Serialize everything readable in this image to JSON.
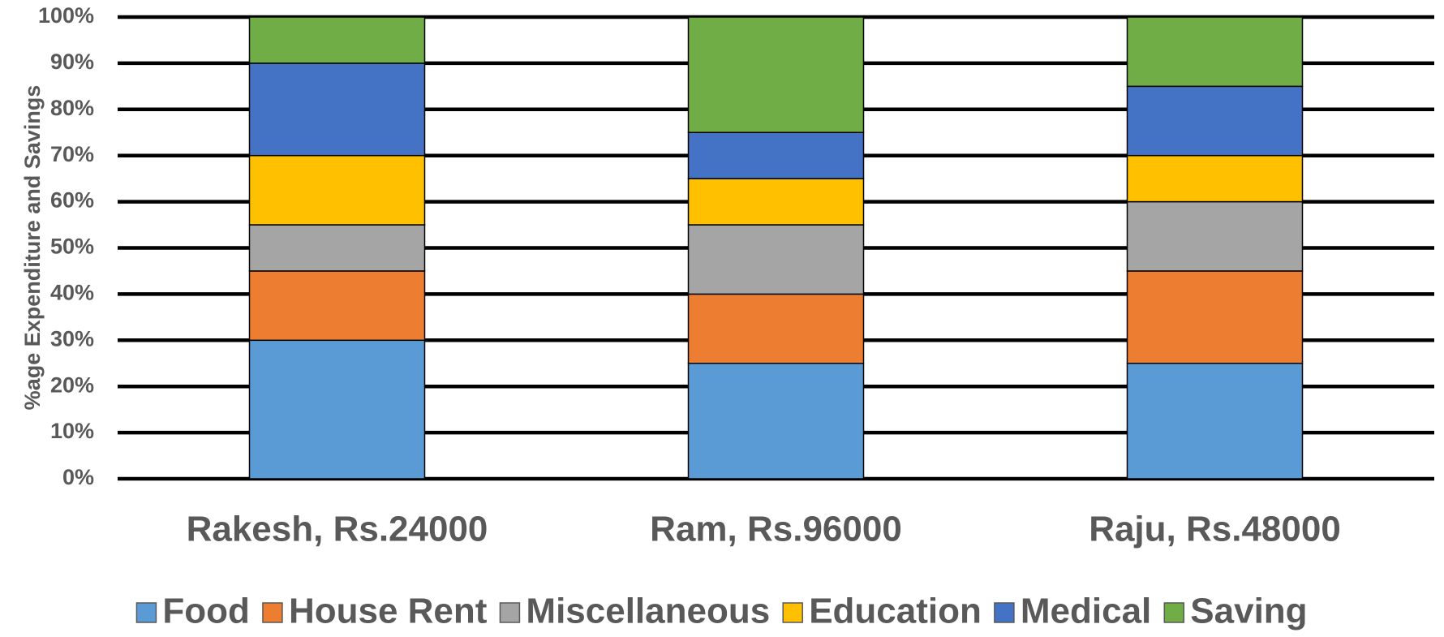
{
  "chart_data": {
    "type": "stacked_bar",
    "y_label": "%age Expenditure and Savings",
    "categories": [
      "Rakesh, Rs.24000",
      "Ram, Rs.96000",
      "Raju, Rs.48000"
    ],
    "series": [
      {
        "name": "Food",
        "color": "#5b9bd5",
        "values": [
          30,
          25,
          25
        ]
      },
      {
        "name": "House Rent",
        "color": "#ed7d31",
        "values": [
          15,
          15,
          20
        ]
      },
      {
        "name": "Miscellaneous",
        "color": "#a5a5a5",
        "values": [
          10,
          15,
          15
        ]
      },
      {
        "name": "Education",
        "color": "#ffc000",
        "values": [
          15,
          10,
          10
        ]
      },
      {
        "name": "Medical",
        "color": "#4472c4",
        "values": [
          20,
          10,
          15
        ]
      },
      {
        "name": "Saving",
        "color": "#70ad47",
        "values": [
          10,
          25,
          15
        ]
      }
    ],
    "ylim": [
      0,
      100
    ],
    "yticks": [
      {
        "value": 0,
        "label": "0%"
      },
      {
        "value": 10,
        "label": "10%"
      },
      {
        "value": 20,
        "label": "20%"
      },
      {
        "value": 30,
        "label": "30%"
      },
      {
        "value": 40,
        "label": "40%"
      },
      {
        "value": 50,
        "label": "50%"
      },
      {
        "value": 60,
        "label": "60%"
      },
      {
        "value": 70,
        "label": "70%"
      },
      {
        "value": 80,
        "label": "80%"
      },
      {
        "value": 90,
        "label": "90%"
      },
      {
        "value": 100,
        "label": "100%"
      }
    ],
    "grid": true,
    "legend": "bottom"
  }
}
